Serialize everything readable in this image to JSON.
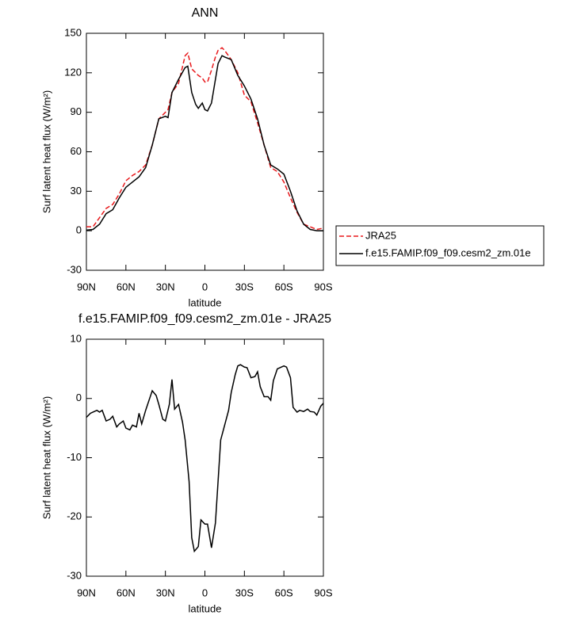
{
  "chart_data": [
    {
      "type": "line",
      "title": "ANN",
      "x_label": "latitude",
      "y_label": "Surf latent heat flux (W/m²)",
      "x": [
        90,
        85,
        80,
        75,
        70,
        65,
        60,
        55,
        50,
        45,
        40,
        35,
        30,
        28,
        25,
        20,
        15,
        13,
        10,
        7,
        5,
        2,
        0,
        -2,
        -5,
        -8,
        -10,
        -13,
        -15,
        -20,
        -25,
        -30,
        -35,
        -40,
        -45,
        -50,
        -55,
        -60,
        -65,
        -70,
        -75,
        -80,
        -85,
        -90
      ],
      "series": [
        {
          "name": "JRA25",
          "color": "#e8191c",
          "line_style": "dashed",
          "values": [
            3,
            3,
            10,
            17,
            20,
            28,
            38,
            42,
            45,
            50,
            65,
            85,
            90,
            92,
            105,
            112,
            133,
            135,
            123,
            120,
            118,
            116,
            113,
            113,
            122,
            132,
            137,
            139,
            137,
            130,
            120,
            103,
            98,
            82,
            65,
            48,
            45,
            37,
            25,
            14,
            5,
            3,
            1,
            2
          ]
        },
        {
          "name": "f.e15.FAMIP.f09_f09.cesm2_zm.01e",
          "color": "#000000",
          "line_style": "solid",
          "values": [
            0.5,
            1,
            5,
            13,
            16,
            25,
            33,
            37,
            41,
            48,
            65,
            85,
            87,
            86,
            105,
            115,
            124,
            125,
            105,
            96,
            93,
            97,
            92,
            91,
            97,
            115,
            127,
            133,
            132,
            130,
            118,
            110,
            100,
            85,
            65,
            50,
            47,
            43,
            30,
            15,
            5,
            1,
            0,
            0
          ]
        }
      ],
      "xlim": [
        90,
        -90
      ],
      "xticks": [
        {
          "value": 90,
          "label": "90N"
        },
        {
          "value": 60,
          "label": "60N"
        },
        {
          "value": 30,
          "label": "30N"
        },
        0,
        {
          "value": -30,
          "label": "30S"
        },
        {
          "value": -60,
          "label": "60S"
        },
        {
          "value": -90,
          "label": "90S"
        }
      ],
      "ylim": [
        -30,
        150
      ],
      "yticks": [
        -30,
        0,
        30,
        60,
        90,
        120,
        150
      ],
      "legend": "right"
    },
    {
      "type": "line",
      "title": "f.e15.FAMIP.f09_f09.cesm2_zm.01e - JRA25",
      "x_label": "latitude",
      "y_label": "Surf latent heat flux (W/m²)",
      "x": [
        90,
        87,
        85,
        82,
        80,
        78,
        75,
        72,
        70,
        67,
        65,
        62,
        60,
        57,
        55,
        52,
        50,
        48,
        45,
        40,
        37,
        35,
        32,
        30,
        27,
        25,
        23,
        20,
        17,
        15,
        12,
        10,
        8,
        5,
        3,
        0,
        -2,
        -5,
        -8,
        -10,
        -12,
        -15,
        -18,
        -20,
        -23,
        -25,
        -27,
        -30,
        -32,
        -35,
        -38,
        -40,
        -42,
        -45,
        -48,
        -50,
        -52,
        -55,
        -58,
        -60,
        -62,
        -65,
        -67,
        -70,
        -72,
        -75,
        -78,
        -80,
        -83,
        -85,
        -88,
        -90
      ],
      "values": [
        -3.2,
        -2.5,
        -2.3,
        -2,
        -2.3,
        -2,
        -3.8,
        -3.5,
        -3,
        -4.8,
        -4.3,
        -3.8,
        -5,
        -5.3,
        -4.5,
        -4.8,
        -2.5,
        -4.3,
        -2,
        1.3,
        0.5,
        -1,
        -3.5,
        -3.8,
        -1,
        3.2,
        -1.8,
        -1,
        -4,
        -7,
        -14,
        -23.5,
        -25.8,
        -25,
        -20.5,
        -21.2,
        -21.2,
        -25.2,
        -21,
        -14,
        -7,
        -4.5,
        -2,
        1,
        4,
        5.5,
        5.7,
        5.3,
        5.2,
        3.5,
        3.7,
        4.5,
        2,
        0.3,
        0.3,
        -0.3,
        3,
        5,
        5.3,
        5.5,
        5.3,
        3.5,
        -1.5,
        -2.3,
        -2,
        -2.2,
        -1.8,
        -2.2,
        -2.3,
        -2.8,
        -1.3,
        -0.8
      ],
      "color": "#000000",
      "xlim": [
        90,
        -90
      ],
      "xticks": [
        {
          "value": 90,
          "label": "90N"
        },
        {
          "value": 60,
          "label": "60N"
        },
        {
          "value": 30,
          "label": "30N"
        },
        0,
        {
          "value": -30,
          "label": "30S"
        },
        {
          "value": -60,
          "label": "60S"
        },
        {
          "value": -90,
          "label": "90S"
        }
      ],
      "ylim": [
        -30,
        10
      ],
      "yticks": [
        -30,
        -20,
        -10,
        0,
        10
      ]
    }
  ]
}
